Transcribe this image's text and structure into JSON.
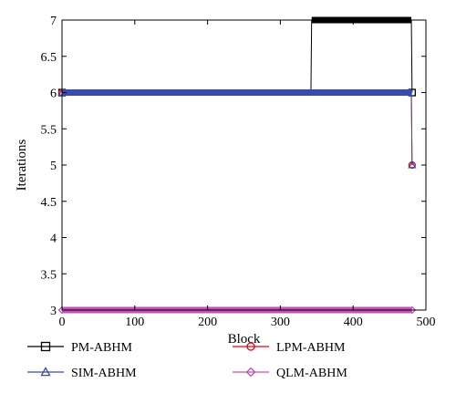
{
  "chart_data": {
    "type": "line",
    "title": "",
    "xlabel": "Block",
    "ylabel": "Iterations",
    "xlim": [
      0,
      500
    ],
    "ylim": [
      3,
      7
    ],
    "xticks": [
      0,
      100,
      200,
      300,
      400,
      500
    ],
    "yticks": [
      3,
      3.5,
      4,
      4.5,
      5,
      5.5,
      6,
      6.5,
      7
    ],
    "xtick_labels": [
      "0",
      "100",
      "200",
      "300",
      "400",
      "500"
    ],
    "ytick_labels": [
      "3",
      "3.5",
      "4",
      "4.5",
      "5",
      "5.5",
      "6",
      "6.5",
      "7"
    ],
    "grid": false,
    "legend_position": "bottom",
    "series": [
      {
        "name": "PM-ABHM",
        "color": "#000000",
        "marker": "square",
        "points": [
          [
            0,
            6
          ],
          [
            342,
            6
          ],
          [
            343,
            7
          ],
          [
            480,
            7
          ],
          [
            481,
            6
          ]
        ]
      },
      {
        "name": "LPM-ABHM",
        "color": "#e8000b",
        "marker": "circle",
        "points": [
          [
            0,
            6
          ],
          [
            480,
            6
          ],
          [
            481,
            5
          ]
        ]
      },
      {
        "name": "SIM-ABHM",
        "color": "#3b4ba8",
        "marker": "triangle",
        "points": [
          [
            0,
            6
          ],
          [
            480,
            6
          ],
          [
            481,
            5
          ]
        ]
      },
      {
        "name": "QLM-ABHM",
        "color": "#c352b5",
        "marker": "diamond",
        "points": [
          [
            0,
            3
          ],
          [
            481,
            3
          ]
        ]
      }
    ]
  }
}
